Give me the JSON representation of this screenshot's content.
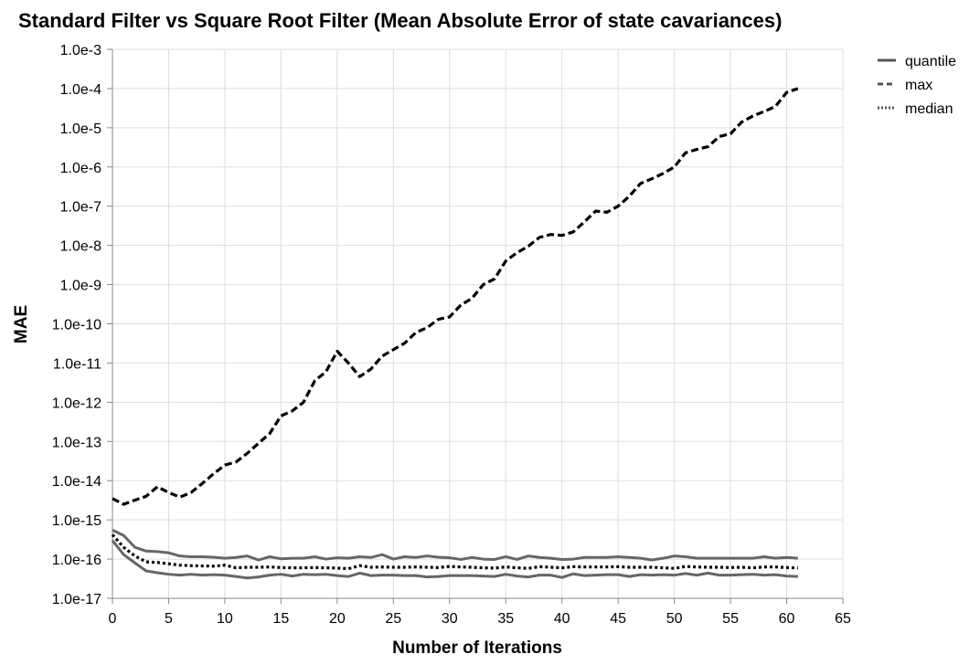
{
  "chart_data": {
    "type": "line",
    "title": "Standard Filter vs Square Root Filter (Mean Absolute Error of state cavariances)",
    "xlabel": "Number of Iterations",
    "ylabel": "MAE",
    "xlim": [
      0,
      65
    ],
    "ylim": [
      1e-17,
      0.001
    ],
    "yscale": "log",
    "grid": true,
    "legend_position": "top-right",
    "x_ticks": [
      0,
      5,
      10,
      15,
      20,
      25,
      30,
      35,
      40,
      45,
      50,
      55,
      60,
      65
    ],
    "x_tick_labels": [
      "0",
      "5",
      "10",
      "15",
      "20",
      "25",
      "30",
      "35",
      "40",
      "45",
      "50",
      "55",
      "60",
      "65"
    ],
    "y_ticks": [
      0.001,
      0.0001,
      1e-05,
      1e-06,
      1e-07,
      1e-08,
      1e-09,
      1e-10,
      1e-11,
      1e-12,
      1e-13,
      1e-14,
      1e-15,
      1e-16,
      1e-17
    ],
    "y_tick_labels": [
      "1.0e-3",
      "1.0e-4",
      "1.0e-5",
      "1.0e-6",
      "1.0e-7",
      "1.0e-8",
      "1.0e-9",
      "1.0e-10",
      "1.0e-11",
      "1.0e-12",
      "1.0e-13",
      "1.0e-14",
      "1.0e-15",
      "1.0e-16",
      "1.0e-17"
    ],
    "x": [
      0,
      1,
      2,
      3,
      4,
      5,
      6,
      7,
      8,
      9,
      10,
      11,
      12,
      13,
      14,
      15,
      16,
      17,
      18,
      19,
      20,
      21,
      22,
      23,
      24,
      25,
      26,
      27,
      28,
      29,
      30,
      31,
      32,
      33,
      34,
      35,
      36,
      37,
      38,
      39,
      40,
      41,
      42,
      43,
      44,
      45,
      46,
      47,
      48,
      49,
      50,
      51,
      52,
      53,
      54,
      55,
      56,
      57,
      58,
      59,
      60,
      61
    ],
    "series": [
      {
        "name": "quantile",
        "style": "solid",
        "color": "#666666",
        "values": [
          5.5e-16,
          4e-16,
          2e-16,
          1.6e-16,
          1.55e-16,
          1.45e-16,
          1.2e-16,
          1.15e-16,
          1.15e-16,
          1.12e-16,
          1.05e-16,
          1.1e-16,
          1.2e-16,
          9.5e-17,
          1.15e-16,
          1.02e-16,
          1.05e-16,
          1.05e-16,
          1.15e-16,
          1e-16,
          1.08e-16,
          1.05e-16,
          1.15e-16,
          1.1e-16,
          1.3e-16,
          1e-16,
          1.15e-16,
          1.1e-16,
          1.2e-16,
          1.12e-16,
          1.08e-16,
          9.8e-17,
          1.1e-16,
          1e-16,
          9.8e-17,
          1.15e-16,
          9.8e-17,
          1.2e-16,
          1.1e-16,
          1.05e-16,
          9.8e-17,
          1e-16,
          1.1e-16,
          1.1e-16,
          1.1e-16,
          1.15e-16,
          1.1e-16,
          1.05e-16,
          9.5e-17,
          1.05e-16,
          1.2e-16,
          1.15e-16,
          1.05e-16,
          1.05e-16,
          1.05e-16,
          1.05e-16,
          1.05e-16,
          1.05e-16,
          1.15e-16,
          1.05e-16,
          1.1e-16,
          1.05e-16
        ]
      },
      {
        "name": "quantile",
        "style": "solid",
        "color": "#666666",
        "values": [
          3e-16,
          1.3e-16,
          8e-17,
          5e-17,
          4.5e-17,
          4.1e-17,
          3.9e-17,
          4.1e-17,
          3.9e-17,
          4e-17,
          3.9e-17,
          3.6e-17,
          3.3e-17,
          3.5e-17,
          3.9e-17,
          4.1e-17,
          3.7e-17,
          4.1e-17,
          4e-17,
          4.1e-17,
          3.8e-17,
          3.6e-17,
          4.4e-17,
          3.8e-17,
          3.9e-17,
          3.9e-17,
          3.8e-17,
          3.8e-17,
          3.5e-17,
          3.6e-17,
          3.8e-17,
          3.8e-17,
          3.8e-17,
          3.7e-17,
          3.6e-17,
          4.1e-17,
          3.7e-17,
          3.5e-17,
          3.9e-17,
          3.9e-17,
          3.4e-17,
          4.2e-17,
          3.8e-17,
          3.9e-17,
          4e-17,
          4e-17,
          3.6e-17,
          4e-17,
          3.9e-17,
          4e-17,
          3.9e-17,
          4.3e-17,
          3.9e-17,
          4.4e-17,
          3.9e-17,
          3.9e-17,
          4e-17,
          4.1e-17,
          3.9e-17,
          4e-17,
          3.7e-17,
          3.6e-17
        ]
      },
      {
        "name": "max",
        "style": "dashed",
        "color": "#000000",
        "values": [
          3.5e-15,
          2.5e-15,
          3.2e-15,
          4e-15,
          7e-15,
          5e-15,
          3.8e-15,
          5e-15,
          8.5e-15,
          1.5e-14,
          2.5e-14,
          3e-14,
          5e-14,
          9e-14,
          1.6e-13,
          4.5e-13,
          6e-13,
          1e-12,
          3.5e-12,
          6e-12,
          2e-11,
          1e-11,
          4.5e-12,
          7e-12,
          1.5e-11,
          2.2e-11,
          3.2e-11,
          6e-11,
          8e-11,
          1.3e-10,
          1.5e-10,
          3e-10,
          4.5e-10,
          1e-09,
          1.4e-09,
          4e-09,
          6.5e-09,
          9.5e-09,
          1.6e-08,
          1.9e-08,
          1.8e-08,
          2.2e-08,
          4e-08,
          7.5e-08,
          7e-08,
          1e-07,
          1.8e-07,
          3.8e-07,
          5e-07,
          6.8e-07,
          1e-06,
          2.3e-06,
          2.8e-06,
          3.3e-06,
          6e-06,
          7e-06,
          1.4e-05,
          2e-05,
          2.6e-05,
          3.5e-05,
          8e-05,
          0.0001
        ]
      },
      {
        "name": "median",
        "style": "dotted",
        "color": "#000000",
        "values": [
          4.2e-16,
          2e-16,
          1.2e-16,
          8.5e-17,
          8.2e-17,
          7.6e-17,
          7e-17,
          6.8e-17,
          6.7e-17,
          6.6e-17,
          7e-17,
          6e-17,
          6.2e-17,
          6.2e-17,
          6.3e-17,
          6.1e-17,
          6e-17,
          6e-17,
          6.1e-17,
          6e-17,
          5.9e-17,
          5.7e-17,
          6.8e-17,
          6.2e-17,
          6.3e-17,
          6.2e-17,
          6.2e-17,
          6.3e-17,
          6.2e-17,
          6.1e-17,
          6.5e-17,
          6.3e-17,
          6.2e-17,
          6e-17,
          5.9e-17,
          6.3e-17,
          6e-17,
          5.8e-17,
          6.4e-17,
          6.2e-17,
          6e-17,
          6.4e-17,
          6.3e-17,
          6.3e-17,
          6.3e-17,
          6.4e-17,
          6.2e-17,
          6.2e-17,
          6.2e-17,
          6e-17,
          5.8e-17,
          6.5e-17,
          6.3e-17,
          6.2e-17,
          6.2e-17,
          6.1e-17,
          6.2e-17,
          6e-17,
          6.3e-17,
          6.3e-17,
          6.1e-17,
          5.9e-17
        ]
      }
    ],
    "legend": [
      {
        "label": "quantile",
        "style": "solid"
      },
      {
        "label": "max",
        "style": "dashed"
      },
      {
        "label": "median",
        "style": "dotted"
      }
    ]
  }
}
